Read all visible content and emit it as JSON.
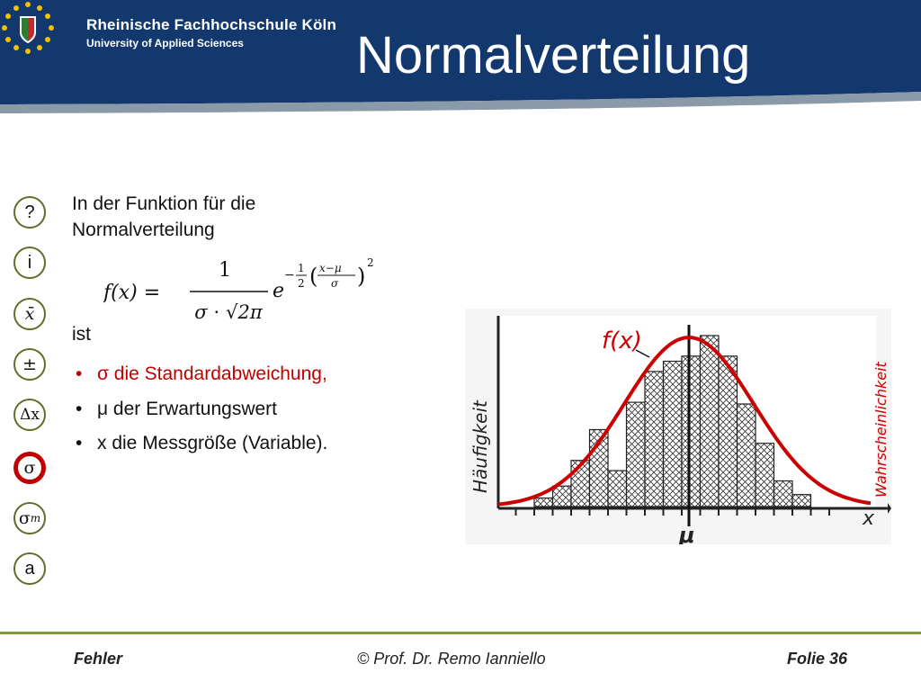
{
  "header": {
    "school_name": "Rheinische Fachhochschule Köln",
    "school_subtitle": "University of Applied Sciences",
    "title": "Normalverteilung",
    "colors": {
      "banner": "#12386e",
      "accent_stripe": "#8a9aa8"
    }
  },
  "nav": {
    "items": [
      {
        "label": "?",
        "name": "help"
      },
      {
        "label": "i",
        "name": "info"
      },
      {
        "label": "x̄",
        "name": "mean"
      },
      {
        "label": "±",
        "name": "plus-minus"
      },
      {
        "label": "Δx",
        "name": "delta-x"
      },
      {
        "label": "σ",
        "name": "sigma",
        "active": true
      },
      {
        "label": "σ",
        "sub": "m",
        "name": "sigma-m"
      },
      {
        "label": "a",
        "name": "a"
      }
    ],
    "active_color": "#c00000"
  },
  "content": {
    "intro": "In der Funktion für die Normalverteilung",
    "ist": "ist",
    "bullets": [
      {
        "text": "σ die Standardabweichung,",
        "highlight": true
      },
      {
        "text": "μ der Erwartungswert",
        "highlight": false
      },
      {
        "text": "x die Messgröße (Variable).",
        "highlight": false
      }
    ],
    "bullet_symbol": "•"
  },
  "formula": {
    "lhs": "𝑓(𝑥) =",
    "numerator": "1",
    "denominator": "𝜎 ⋅ √2𝜋",
    "base": "𝑒",
    "exponent": "−½((𝑥−μ)/𝜎)²"
  },
  "chart_data": {
    "type": "bar",
    "description_labels": {
      "curve_label": "f(x)",
      "y_axis_left": "Häufigkeit",
      "y_axis_right": "Wahrscheinlichkeit",
      "x_axis": "x",
      "mean_label": "μ"
    },
    "bar_heights": [
      0.05,
      0.12,
      0.27,
      0.45,
      0.21,
      0.61,
      0.79,
      0.85,
      0.88,
      1.0,
      0.88,
      0.6,
      0.37,
      0.15,
      0.07
    ],
    "curve_color": "#cc0000"
  },
  "footer": {
    "left": "Fehler",
    "center": "© Prof. Dr. Remo Ianniello",
    "right_label": "Folie",
    "slide_number": "36"
  }
}
